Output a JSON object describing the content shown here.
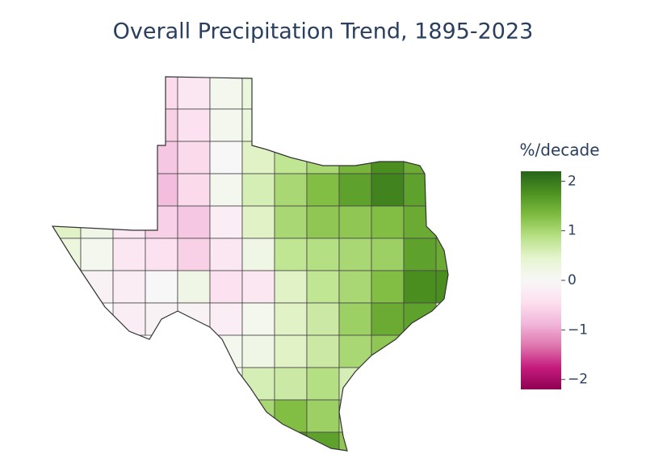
{
  "chart_data": {
    "type": "choropleth",
    "title": "Overall Precipitation Trend, 1895-2023",
    "colorbar_title": "%/decade",
    "zlim": [
      -2.2,
      2.2
    ],
    "colorscale": [
      "#8e0152",
      "#c51b7d",
      "#de77ae",
      "#f1b6da",
      "#fde0ef",
      "#f7f7f7",
      "#e6f5d0",
      "#b8e186",
      "#7fbc41",
      "#4d9221",
      "#276419"
    ],
    "zticks": [
      2,
      1,
      0,
      {
        "value": -1,
        "label": "−1"
      },
      {
        "value": -2,
        "label": "−2"
      }
    ],
    "z": [
      [
        null,
        null,
        null,
        -0.5,
        -0.3,
        0.1,
        0.3,
        null,
        null,
        null,
        null,
        null,
        null
      ],
      [
        null,
        null,
        null,
        -0.6,
        -0.4,
        0.1,
        0.3,
        null,
        null,
        null,
        null,
        null,
        null
      ],
      [
        null,
        null,
        null,
        -0.7,
        -0.5,
        0,
        0.5,
        0.8,
        1.0,
        1.4,
        1.8,
        1.5,
        null
      ],
      [
        null,
        null,
        null,
        -0.8,
        -0.5,
        0.1,
        0.6,
        1.0,
        1.3,
        1.6,
        1.9,
        1.6,
        null
      ],
      [
        0.5,
        0.2,
        -0.3,
        -0.6,
        -0.7,
        -0.2,
        0.5,
        1.0,
        1.2,
        1.2,
        1.3,
        1.5,
        null
      ],
      [
        0.3,
        0.1,
        -0.3,
        -0.4,
        -0.6,
        -0.3,
        0.2,
        0.8,
        0.9,
        1.0,
        1.1,
        1.6,
        1.5
      ],
      [
        null,
        -0.1,
        -0.2,
        0,
        0.2,
        -0.4,
        -0.3,
        0.5,
        0.8,
        1.0,
        1.3,
        1.8,
        1.8
      ],
      [
        null,
        null,
        -0.2,
        -0.1,
        -0.1,
        -0.2,
        0.1,
        0.5,
        0.7,
        1.1,
        1.5,
        1.6,
        null
      ],
      [
        null,
        null,
        null,
        null,
        null,
        0.1,
        0.2,
        0.5,
        0.7,
        1.0,
        1.2,
        null,
        null
      ],
      [
        null,
        null,
        null,
        null,
        null,
        null,
        0.6,
        0.7,
        0.9,
        0.6,
        null,
        null,
        null
      ],
      [
        null,
        null,
        null,
        null,
        null,
        null,
        1.0,
        1.3,
        1.1,
        0.8,
        null,
        null,
        null
      ],
      [
        null,
        null,
        null,
        null,
        null,
        null,
        null,
        1.8,
        1.6,
        1.2,
        null,
        null,
        null
      ]
    ]
  }
}
